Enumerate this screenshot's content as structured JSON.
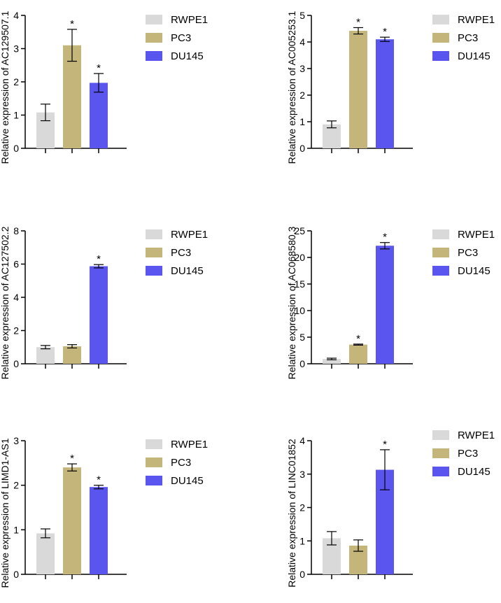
{
  "chart_data": [
    {
      "type": "bar",
      "ylabel": "Relative expression of AC129507.1",
      "categories": [
        "RWPE1",
        "PC3",
        "DU145"
      ],
      "values": [
        1.08,
        3.1,
        1.97
      ],
      "errors": [
        0.25,
        0.48,
        0.28
      ],
      "significance": [
        "",
        "*",
        "*"
      ],
      "ylim": [
        0,
        4
      ],
      "yticks": [
        0,
        1,
        2,
        3,
        4
      ],
      "legend": [
        "RWPE1",
        "PC3",
        "DU145"
      ]
    },
    {
      "type": "bar",
      "ylabel": "Relative expression of AC005253.1",
      "categories": [
        "RWPE1",
        "PC3",
        "DU145"
      ],
      "values": [
        0.9,
        4.42,
        4.1
      ],
      "errors": [
        0.13,
        0.12,
        0.08
      ],
      "significance": [
        "",
        "*",
        "*"
      ],
      "ylim": [
        0,
        5
      ],
      "yticks": [
        0,
        1,
        2,
        3,
        4,
        5
      ],
      "legend": [
        "RWPE1",
        "PC3",
        "DU145"
      ]
    },
    {
      "type": "bar",
      "ylabel": "Relative expression of AC127502.2",
      "categories": [
        "RWPE1",
        "PC3",
        "DU145"
      ],
      "values": [
        1.0,
        1.05,
        5.87
      ],
      "errors": [
        0.1,
        0.1,
        0.1
      ],
      "significance": [
        "",
        "",
        "*"
      ],
      "ylim": [
        0,
        8
      ],
      "yticks": [
        0,
        2,
        4,
        6,
        8
      ],
      "legend": [
        "RWPE1",
        "PC3",
        "DU145"
      ]
    },
    {
      "type": "bar",
      "ylabel": "Relative expression of AC068580.3",
      "categories": [
        "RWPE1",
        "PC3",
        "DU145"
      ],
      "values": [
        0.9,
        3.6,
        22.2
      ],
      "errors": [
        0.15,
        0.1,
        0.6
      ],
      "significance": [
        "",
        "*",
        "*"
      ],
      "ylim": [
        0,
        25
      ],
      "yticks": [
        0,
        5,
        10,
        15,
        20,
        25
      ],
      "legend": [
        "RWPE1",
        "PC3",
        "DU145"
      ]
    },
    {
      "type": "bar",
      "ylabel": "Relative expression of LIMD1-AS1",
      "categories": [
        "RWPE1",
        "PC3",
        "DU145"
      ],
      "values": [
        0.92,
        2.4,
        1.96
      ],
      "errors": [
        0.1,
        0.08,
        0.04
      ],
      "significance": [
        "",
        "*",
        "*"
      ],
      "ylim": [
        0,
        3
      ],
      "yticks": [
        0,
        1,
        2,
        3
      ],
      "legend": [
        "RWPE1",
        "PC3",
        "DU145"
      ]
    },
    {
      "type": "bar",
      "ylabel": "Relative expression of LINC01852",
      "categories": [
        "RWPE1",
        "PC3",
        "DU145"
      ],
      "values": [
        1.08,
        0.86,
        3.13
      ],
      "errors": [
        0.2,
        0.17,
        0.6
      ],
      "significance": [
        "",
        "",
        "*"
      ],
      "ylim": [
        0,
        4
      ],
      "yticks": [
        0,
        1,
        2,
        3,
        4
      ],
      "legend": [
        "RWPE1",
        "PC3",
        "DU145"
      ]
    }
  ],
  "colors": {
    "RWPE1": "#d9d9d9",
    "PC3": "#c4b57a",
    "DU145": "#5b55f0"
  }
}
